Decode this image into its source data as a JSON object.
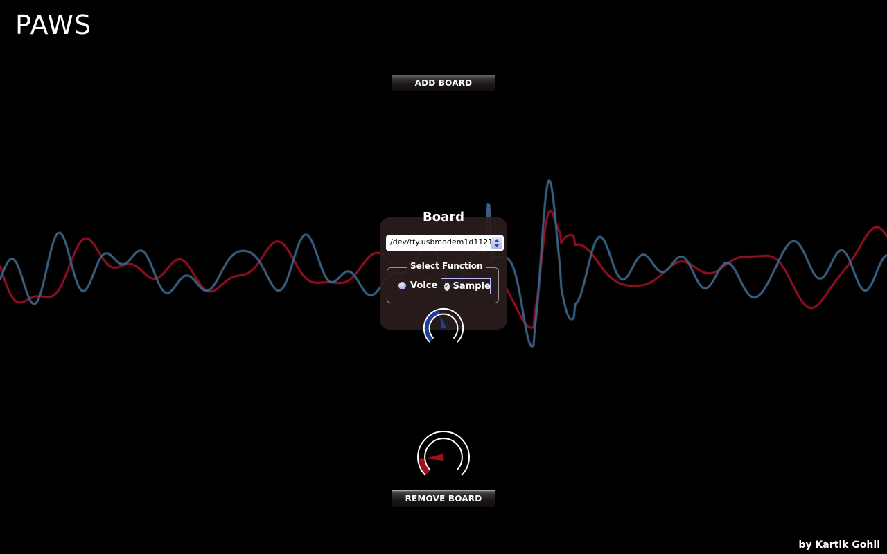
{
  "app": {
    "title": "PAWS",
    "credit": "by Kartik Gohil"
  },
  "buttons": {
    "add_board": "ADD BOARD",
    "remove_board": "REMOVE BOARD"
  },
  "board": {
    "title": "Board",
    "port_value": "/dev/tty.usbmodem1d1121",
    "function_legend": "Select Function",
    "options": [
      {
        "label": "Voice",
        "selected": false
      },
      {
        "label": "Sample",
        "selected": true
      }
    ]
  },
  "gauges": {
    "board_gauge_level": 0.45,
    "remove_gauge_level": 0.15
  },
  "colors": {
    "background": "#000000",
    "wave_red": "#9a0f24",
    "wave_blue": "#3c6486",
    "gauge_blue": "#1f3f9a",
    "gauge_red": "#a1101c"
  }
}
